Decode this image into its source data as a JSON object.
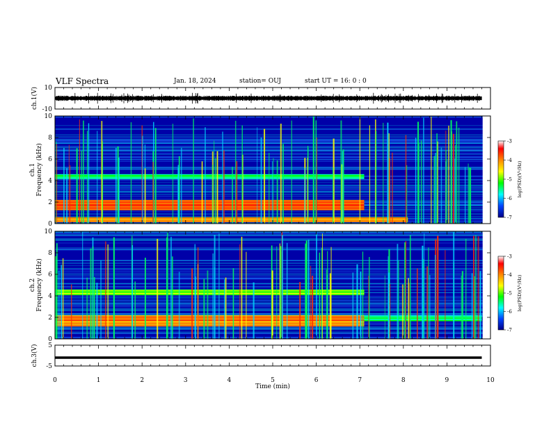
{
  "header": {
    "title": "VLF Spectra",
    "date": "Jan. 18, 2024",
    "station": "station= OUJ",
    "start": "start  UT =  16: 0  : 0"
  },
  "colors": {
    "spectrogram_background": "#0000a8",
    "trace": "#000000"
  },
  "chart_data": [
    {
      "type": "line",
      "name": "ch1-waveform",
      "ylabel": "ch.1(V)",
      "yticks": [
        "10",
        "-10"
      ],
      "ylim": [
        -10,
        10
      ],
      "xlim": [
        0,
        10
      ],
      "trace_span_min": [
        0,
        9.8
      ],
      "approx_amplitude_V": 2
    },
    {
      "type": "heatmap",
      "name": "ch1-spectrogram",
      "ylabel": "ch.1\nFrequency (kHz)",
      "yticks": [
        "0",
        "2",
        "4",
        "6",
        "8",
        "10"
      ],
      "ylim": [
        0,
        10
      ],
      "xlim": [
        0,
        10
      ],
      "colorbar": {
        "label": "log(PSD)(V²/Hz)",
        "ticks": [
          "-3",
          "-4",
          "-5",
          "-6",
          "-7"
        ],
        "range": [
          -7,
          -3
        ]
      },
      "bands": [
        {
          "f_low": 1.3,
          "f_high": 2.2,
          "t_start": 0,
          "t_end": 7.1,
          "level": -3.6
        },
        {
          "f_low": 4.2,
          "f_high": 4.6,
          "t_start": 0,
          "t_end": 7.1,
          "level": -5.2
        },
        {
          "f_low": 0.2,
          "f_high": 0.6,
          "t_start": 0,
          "t_end": 8.1,
          "level": -4.0
        }
      ]
    },
    {
      "type": "heatmap",
      "name": "ch2-spectrogram",
      "ylabel": "ch.2\nFrequency (kHz)",
      "yticks": [
        "0",
        "2",
        "4",
        "6",
        "8",
        "10"
      ],
      "ylim": [
        0,
        10
      ],
      "xlim": [
        0,
        10
      ],
      "colorbar": {
        "label": "log(PSD)(V²/Hz)",
        "ticks": [
          "-3",
          "-4",
          "-5",
          "-6",
          "-7"
        ],
        "range": [
          -7,
          -3
        ]
      },
      "bands": [
        {
          "f_low": 1.2,
          "f_high": 2.2,
          "t_start": 0,
          "t_end": 7.1,
          "level": -3.8
        },
        {
          "f_low": 4.1,
          "f_high": 4.6,
          "t_start": 0,
          "t_end": 7.1,
          "level": -4.8
        },
        {
          "f_low": 1.7,
          "f_high": 2.2,
          "t_start": 7.1,
          "t_end": 9.8,
          "level": -5.3
        }
      ]
    },
    {
      "type": "line",
      "name": "ch3-waveform",
      "ylabel": "ch.3(V)",
      "yticks": [
        "5",
        "-5"
      ],
      "ylim": [
        -5,
        5
      ],
      "xlim": [
        0,
        10
      ],
      "trace_span_min": [
        0,
        9.8
      ],
      "constant_V": -1
    }
  ],
  "x_axis": {
    "label": "Time (min)",
    "ticks": [
      "0",
      "1",
      "2",
      "3",
      "4",
      "5",
      "6",
      "7",
      "8",
      "9",
      "10"
    ]
  }
}
